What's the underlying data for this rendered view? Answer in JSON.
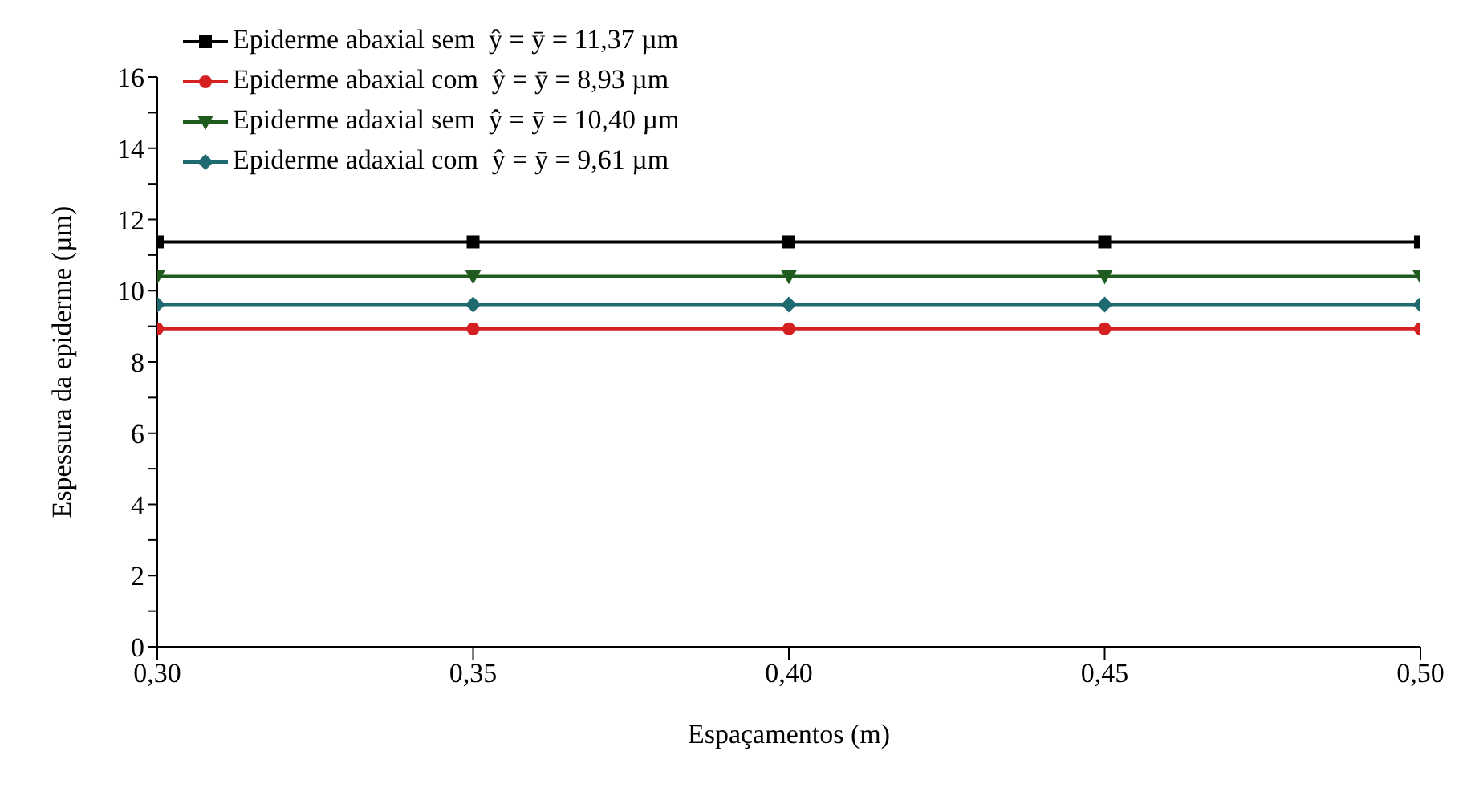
{
  "chart_data": {
    "type": "line",
    "xlabel": "Espaçamentos (m)",
    "ylabel": "Espessura da epiderme (µm)",
    "x": [
      0.3,
      0.35,
      0.4,
      0.45,
      0.5
    ],
    "series": [
      {
        "name": "Epiderme abaxial sem  ŷ = ȳ = 11,37 µm",
        "color": "#000000",
        "marker": "square",
        "values": [
          11.37,
          11.37,
          11.37,
          11.37,
          11.37
        ]
      },
      {
        "name": "Epiderme abaxial com  ŷ = ȳ = 8,93 µm",
        "color": "#d42020",
        "marker": "circle",
        "values": [
          8.93,
          8.93,
          8.93,
          8.93,
          8.93
        ]
      },
      {
        "name": "Epiderme adaxial sem  ŷ = ȳ = 10,40 µm",
        "color": "#1f5a1f",
        "marker": "triangle",
        "values": [
          10.4,
          10.4,
          10.4,
          10.4,
          10.4
        ]
      },
      {
        "name": "Epiderme adaxial com  ŷ = ȳ = 9,61 µm",
        "color": "#1f6a6e",
        "marker": "diamond",
        "values": [
          9.61,
          9.61,
          9.61,
          9.61,
          9.61
        ]
      }
    ],
    "xlim": [
      0.3,
      0.5
    ],
    "xticks": [
      {
        "value": 0.3,
        "label": "0,30"
      },
      {
        "value": 0.35,
        "label": "0,35"
      },
      {
        "value": 0.4,
        "label": "0,40"
      },
      {
        "value": 0.45,
        "label": "0,45"
      },
      {
        "value": 0.5,
        "label": "0,50"
      }
    ],
    "ylim": [
      0,
      16
    ],
    "yticks": [
      0,
      {
        "value": 1,
        "label": null
      },
      2,
      {
        "value": 3,
        "label": null
      },
      4,
      {
        "value": 5,
        "label": null
      },
      6,
      {
        "value": 7,
        "label": null
      },
      8,
      {
        "value": 9,
        "label": null
      },
      10,
      {
        "value": 11,
        "label": null
      },
      12,
      {
        "value": 13,
        "label": null
      },
      14,
      {
        "value": 15,
        "label": null
      },
      16
    ],
    "grid": false,
    "legend": "top left",
    "line_style": "solid"
  }
}
